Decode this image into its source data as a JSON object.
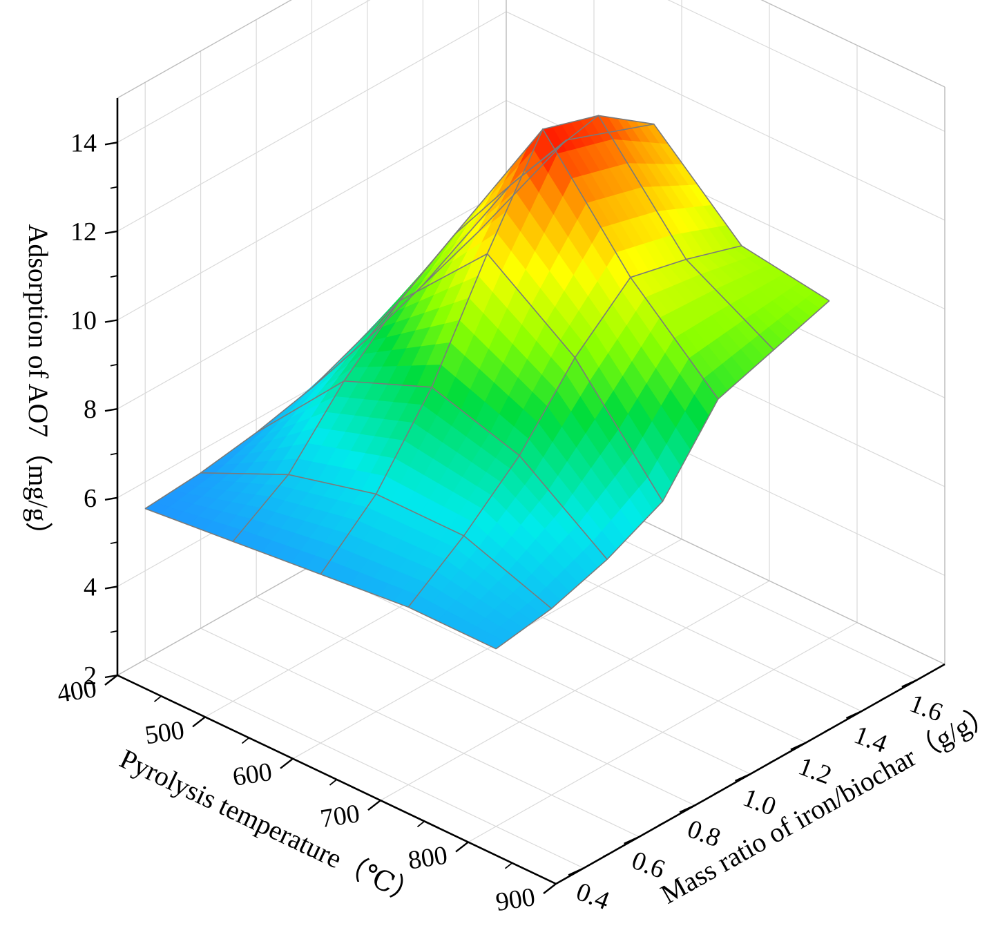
{
  "chart_data": {
    "type": "surface3d",
    "title": "",
    "x_axis": {
      "label": "Pyrolysis temperature（℃）",
      "range": [
        400,
        900
      ],
      "ticks": [
        "400",
        "500",
        "600",
        "700",
        "800",
        "900"
      ]
    },
    "y_axis": {
      "label": "Mass ratio of iron/biochar（g/g）",
      "range": [
        0.3,
        1.7
      ],
      "ticks": [
        "0.4",
        "0.6",
        "0.8",
        "1.0",
        "1.2",
        "1.4",
        "1.6"
      ]
    },
    "z_axis": {
      "label": "Adsorption of AO7（mg/g）",
      "range": [
        2,
        15
      ],
      "ticks": [
        "2",
        "4",
        "6",
        "8",
        "10",
        "12",
        "14"
      ]
    },
    "grid": true,
    "colormap": "rainbow (blue = low, red = high)",
    "temperatures": [
      400,
      500,
      600,
      700,
      800
    ],
    "mass_ratios": [
      0.4,
      0.6,
      0.8,
      1.0,
      1.2,
      1.4,
      1.6
    ],
    "z": [
      [
        5.4,
        5.5,
        5.7,
        6.0,
        6.4,
        6.9,
        7.4
      ],
      [
        5.6,
        6.4,
        7.8,
        8.9,
        9.7,
        10.1,
        10.4
      ],
      [
        5.8,
        6.9,
        8.6,
        10.9,
        13.0,
        12.6,
        11.7
      ],
      [
        6.0,
        6.9,
        8.0,
        9.5,
        10.6,
        10.3,
        9.9
      ],
      [
        6.0,
        6.2,
        6.6,
        7.2,
        8.8,
        9.2,
        9.6
      ]
    ]
  }
}
